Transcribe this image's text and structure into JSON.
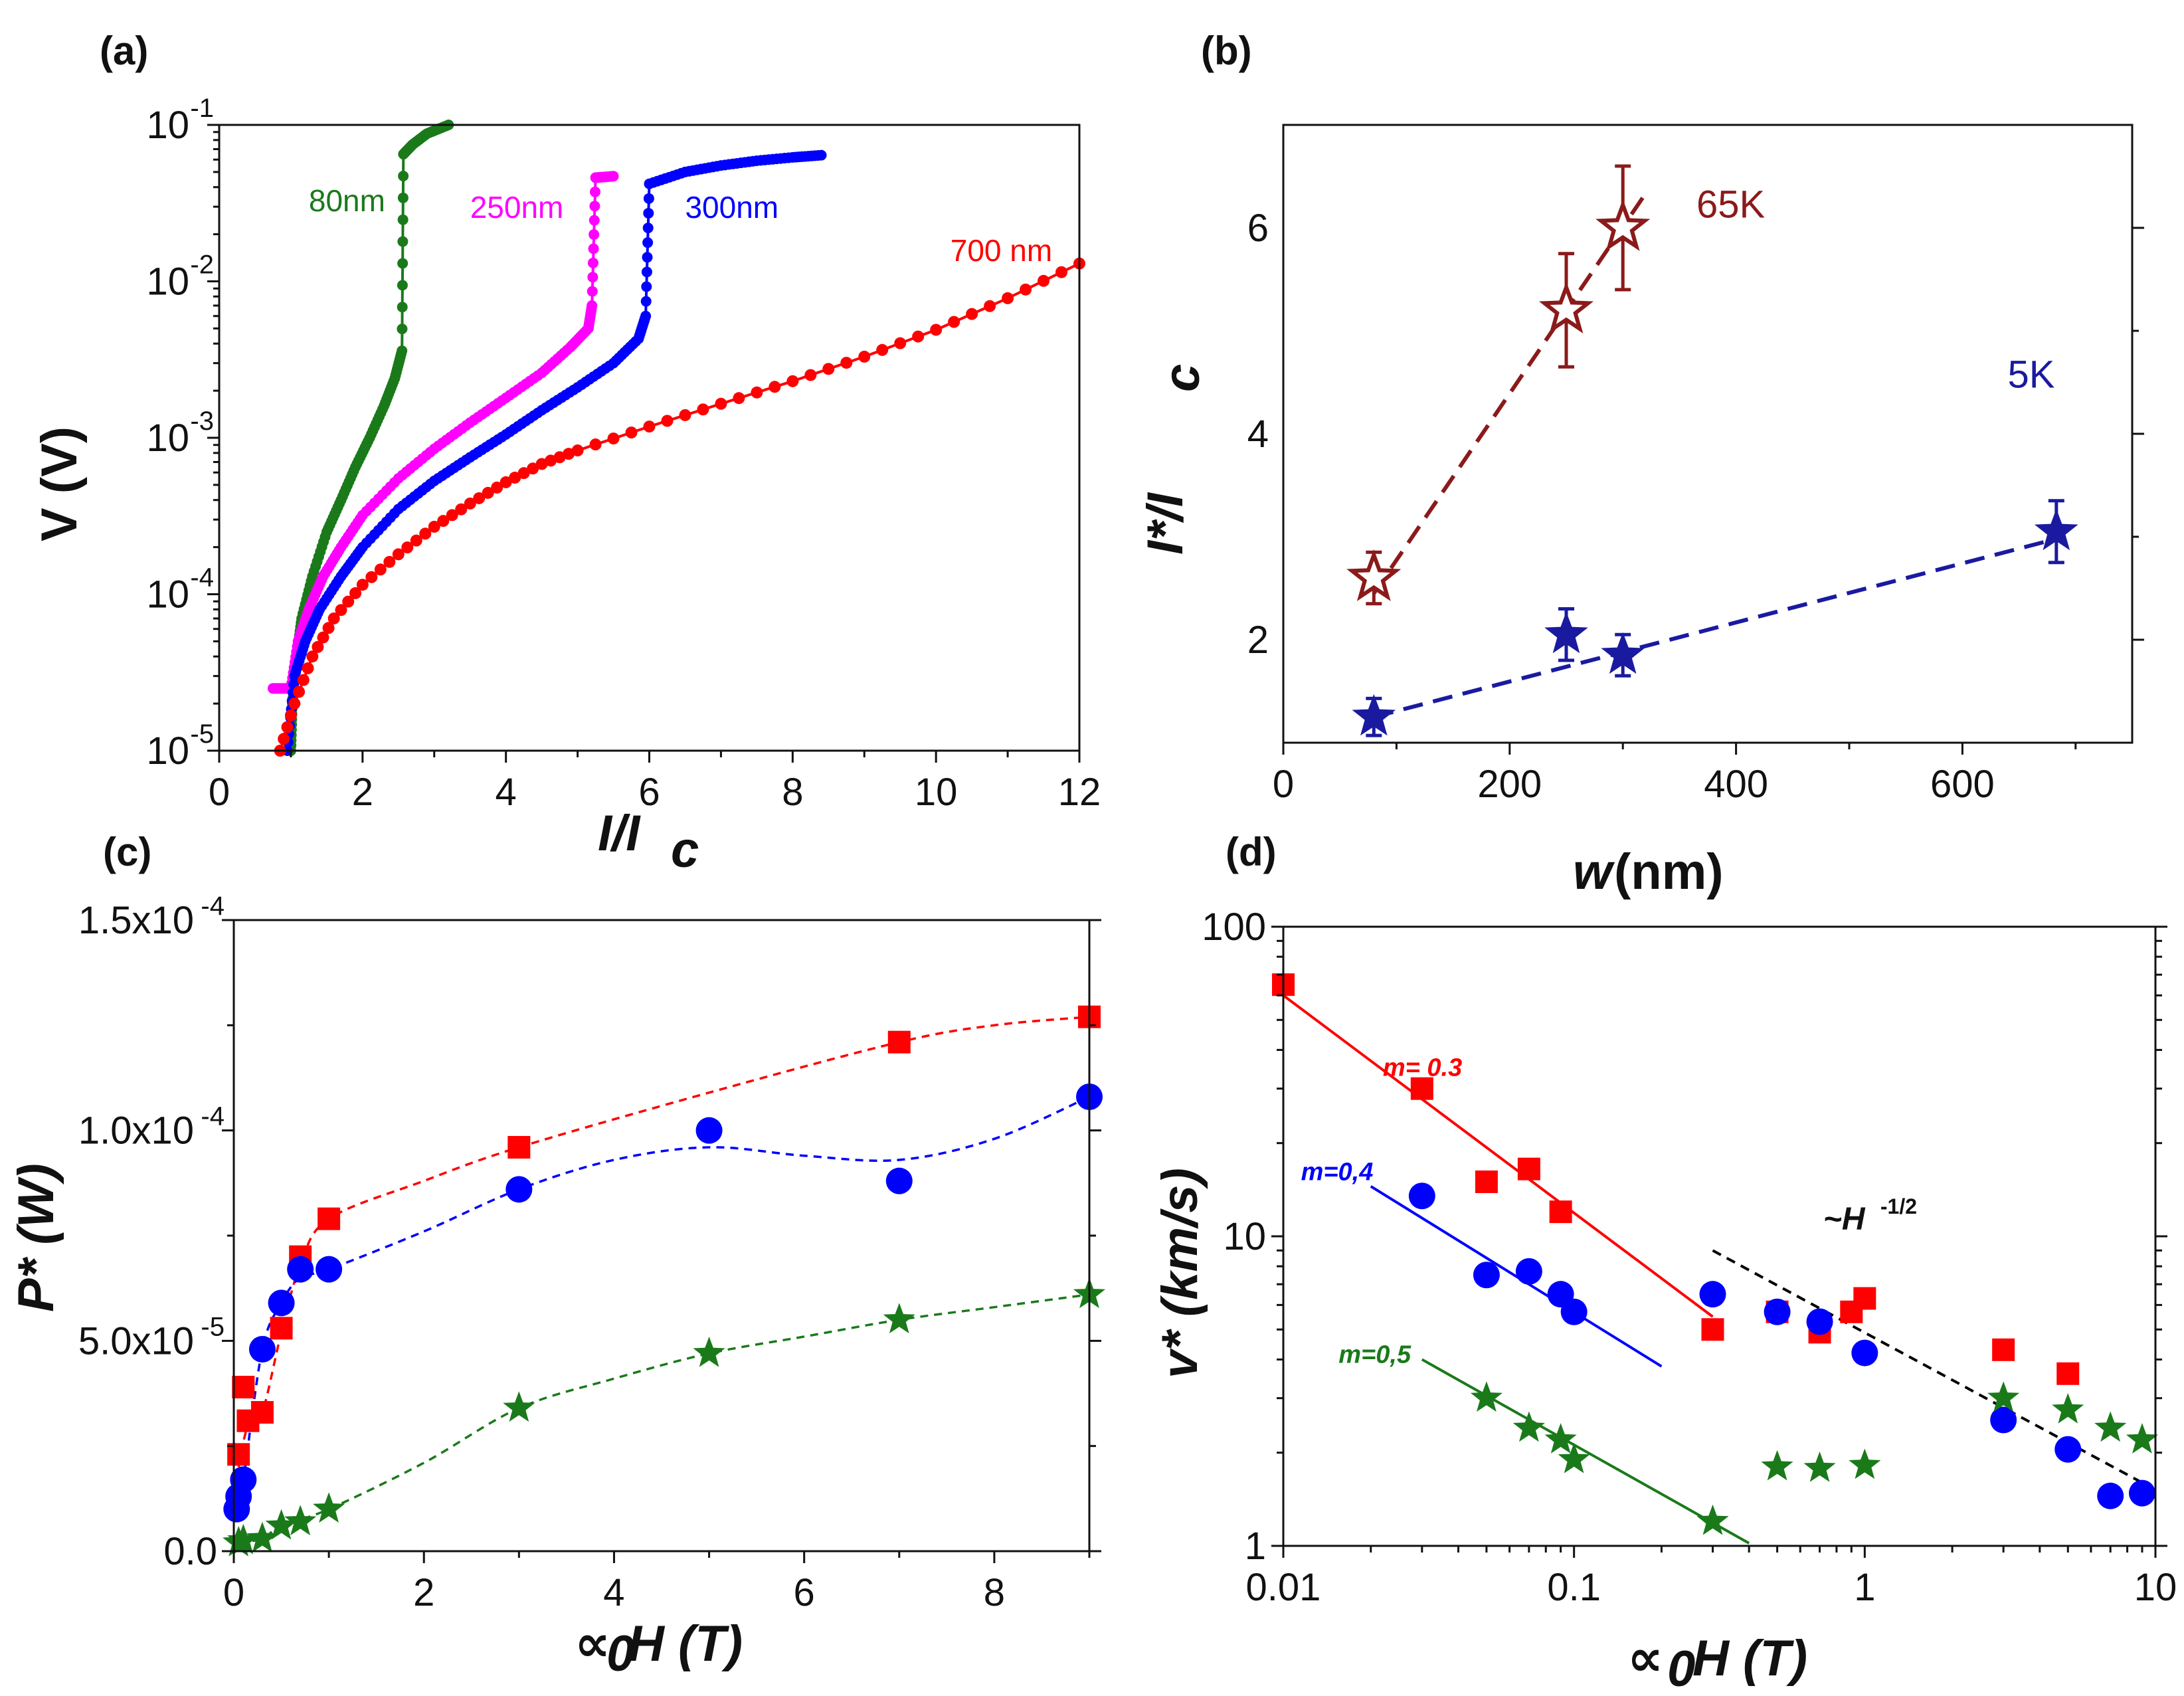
{
  "chart_data": [
    {
      "panel": "(a)",
      "type": "line",
      "log_y": true,
      "xlabel": "I/I",
      "xlabel_sub": "c",
      "ylabel": "V (V)",
      "xlim": [
        0,
        12
      ],
      "ylim": [
        1e-05,
        0.1
      ],
      "xticks": [
        "0",
        "2",
        "4",
        "6",
        "8",
        "10",
        "12"
      ],
      "yticks": [
        {
          "base": "10",
          "exp": "-5"
        },
        {
          "base": "10",
          "exp": "-4"
        },
        {
          "base": "10",
          "exp": "-3"
        },
        {
          "base": "10",
          "exp": "-2"
        },
        {
          "base": "10",
          "exp": "-1"
        }
      ],
      "series": [
        {
          "name": "80nm",
          "label_pos": [
            1.25,
            0.028
          ],
          "color": "#1a7a1a",
          "points": [
            [
              1.0,
              1e-05
            ],
            [
              1.02,
              2e-05
            ],
            [
              1.08,
              4e-05
            ],
            [
              1.15,
              7e-05
            ],
            [
              1.3,
              0.00013
            ],
            [
              1.5,
              0.00025
            ],
            [
              1.7,
              0.0004
            ],
            [
              1.9,
              0.00065
            ],
            [
              2.1,
              0.001
            ],
            [
              2.3,
              0.0016
            ],
            [
              2.45,
              0.0024
            ],
            [
              2.55,
              0.0036
            ],
            [
              2.57,
              0.065
            ],
            [
              2.7,
              0.075
            ],
            [
              2.9,
              0.088
            ],
            [
              3.2,
              0.1
            ]
          ]
        },
        {
          "name": "250nm",
          "label_pos": [
            3.5,
            0.0255
          ],
          "color": "#ff00ff",
          "points": [
            [
              0.75,
              2.5e-05
            ],
            [
              1.0,
              2.5e-05
            ],
            [
              1.1,
              5e-05
            ],
            [
              1.25,
              8e-05
            ],
            [
              1.45,
              0.00013
            ],
            [
              1.7,
              0.0002
            ],
            [
              2.0,
              0.00032
            ],
            [
              2.5,
              0.00055
            ],
            [
              3.0,
              0.00085
            ],
            [
              3.5,
              0.00125
            ],
            [
              4.0,
              0.0018
            ],
            [
              4.5,
              0.0026
            ],
            [
              4.9,
              0.0038
            ],
            [
              5.15,
              0.005
            ],
            [
              5.2,
              0.007
            ],
            [
              5.25,
              0.046
            ],
            [
              5.5,
              0.047
            ]
          ]
        },
        {
          "name": "300nm",
          "label_pos": [
            6.5,
            0.0255
          ],
          "color": "#0000ff",
          "points": [
            [
              0.95,
              1e-05
            ],
            [
              1.05,
              3e-05
            ],
            [
              1.2,
              5e-05
            ],
            [
              1.4,
              8e-05
            ],
            [
              1.7,
              0.00013
            ],
            [
              2.0,
              0.0002
            ],
            [
              2.5,
              0.00035
            ],
            [
              3.0,
              0.00053
            ],
            [
              3.5,
              0.00075
            ],
            [
              4.0,
              0.00105
            ],
            [
              4.5,
              0.0015
            ],
            [
              5.0,
              0.0021
            ],
            [
              5.5,
              0.003
            ],
            [
              5.85,
              0.0043
            ],
            [
              5.95,
              0.006
            ],
            [
              6.0,
              0.042
            ],
            [
              6.5,
              0.05
            ],
            [
              7.0,
              0.055
            ],
            [
              7.5,
              0.059
            ],
            [
              8.0,
              0.062
            ],
            [
              8.4,
              0.064
            ]
          ]
        },
        {
          "name": "700 nm",
          "label_pos": [
            10.2,
            0.0135
          ],
          "color": "#ff0000",
          "points": [
            [
              0.85,
              1e-05
            ],
            [
              1.05,
              2e-05
            ],
            [
              1.3,
              4e-05
            ],
            [
              1.6,
              7e-05
            ],
            [
              2.0,
              0.000115
            ],
            [
              2.5,
              0.00018
            ],
            [
              3.0,
              0.00027
            ],
            [
              3.5,
              0.00038
            ],
            [
              4.0,
              0.00052
            ],
            [
              4.5,
              0.00068
            ],
            [
              5.0,
              0.00083
            ],
            [
              6.0,
              0.00118
            ],
            [
              7.0,
              0.00165
            ],
            [
              8.0,
              0.0023
            ],
            [
              9.0,
              0.0033
            ],
            [
              10.0,
              0.0049
            ],
            [
              11.0,
              0.0078
            ],
            [
              12.0,
              0.013
            ]
          ]
        }
      ]
    },
    {
      "panel": "(b)",
      "type": "scatter",
      "xlabel": "w",
      "xlabel_unit": " (nm)",
      "ylabel": "I*/I",
      "ylabel_sub": "c",
      "xlim": [
        0,
        750
      ],
      "ylim": [
        1,
        7
      ],
      "xticks": [
        "0",
        "200",
        "400",
        "600"
      ],
      "yticks": [
        "2",
        "4",
        "6"
      ],
      "series": [
        {
          "name": "65K",
          "label_pos": [
            365,
            6.1
          ],
          "color": "#8b1a1a",
          "marker": "open-star",
          "points": [
            [
              80,
              2.6,
              0.25
            ],
            [
              250,
              5.2,
              0.55
            ],
            [
              300,
              6.0,
              0.6
            ]
          ]
        },
        {
          "name": "5K",
          "label_pos": [
            640,
            4.45
          ],
          "color": "#1a1aa0",
          "marker": "filled-star",
          "points": [
            [
              80,
              1.25,
              0.18
            ],
            [
              250,
              2.05,
              0.25
            ],
            [
              300,
              1.85,
              0.2
            ],
            [
              683,
              3.05,
              0.3
            ]
          ]
        }
      ]
    },
    {
      "panel": "(c)",
      "type": "scatter",
      "xlabel": "∝",
      "xlabel_sub": "0",
      "xlabel_rest": "H (T)",
      "ylabel": "P* (W)",
      "xlim": [
        0,
        9
      ],
      "ylim": [
        0,
        0.00015
      ],
      "xticks": [
        "0",
        "2",
        "4",
        "6",
        "8"
      ],
      "yticks": [
        {
          "v": 0,
          "text": "0.0",
          "exp": ""
        },
        {
          "v": 5e-05,
          "text": "5.0x10",
          "exp": "-5"
        },
        {
          "v": 0.0001,
          "text": "1.0x10",
          "exp": "-4"
        },
        {
          "v": 0.00015,
          "text": "1.5x10",
          "exp": "-4"
        }
      ],
      "series": [
        {
          "name": "red-squares",
          "color": "#ff0000",
          "marker": "square",
          "points": [
            [
              0.05,
              2.3e-05
            ],
            [
              0.1,
              3.9e-05
            ],
            [
              0.15,
              3.1e-05
            ],
            [
              0.3,
              3.3e-05
            ],
            [
              0.5,
              5.3e-05
            ],
            [
              0.7,
              7e-05
            ],
            [
              1.0,
              7.9e-05
            ],
            [
              3.0,
              9.6e-05
            ],
            [
              7.0,
              0.000121
            ],
            [
              9.0,
              0.000127
            ]
          ]
        },
        {
          "name": "blue-circles",
          "color": "#0000ff",
          "marker": "circle",
          "points": [
            [
              0.03,
              1e-05
            ],
            [
              0.05,
              1.3e-05
            ],
            [
              0.1,
              1.7e-05
            ],
            [
              0.3,
              4.8e-05
            ],
            [
              0.5,
              5.9e-05
            ],
            [
              0.7,
              6.7e-05
            ],
            [
              1.0,
              6.7e-05
            ],
            [
              3.0,
              8.6e-05
            ],
            [
              5.0,
              0.0001
            ],
            [
              7.0,
              8.8e-05
            ],
            [
              9.0,
              0.000108
            ]
          ]
        },
        {
          "name": "green-stars",
          "color": "#1a7a1a",
          "marker": "filled-star",
          "points": [
            [
              0.05,
              2e-06
            ],
            [
              0.1,
              2.5e-06
            ],
            [
              0.3,
              3e-06
            ],
            [
              0.5,
              6e-06
            ],
            [
              0.7,
              7e-06
            ],
            [
              1.0,
              1e-05
            ],
            [
              3.0,
              3.4e-05
            ],
            [
              5.0,
              4.7e-05
            ],
            [
              7.0,
              5.5e-05
            ],
            [
              9.0,
              6.1e-05
            ]
          ]
        }
      ],
      "fit_curves": [
        {
          "color": "#ff0000",
          "points": [
            [
              0.05,
              2e-05
            ],
            [
              0.15,
              3e-05
            ],
            [
              0.3,
              3.3e-05
            ],
            [
              0.5,
              5.2e-05
            ],
            [
              0.7,
              6.8e-05
            ],
            [
              1.0,
              7.9e-05
            ],
            [
              2.0,
              8.8e-05
            ],
            [
              3.0,
              9.6e-05
            ],
            [
              5.0,
              0.000109
            ],
            [
              7.0,
              0.000121
            ],
            [
              8.0,
              0.000125
            ],
            [
              9.0,
              0.000127
            ]
          ]
        },
        {
          "color": "#0000ff",
          "points": [
            [
              0.03,
              1e-05
            ],
            [
              0.1,
              1.7e-05
            ],
            [
              0.3,
              4.8e-05
            ],
            [
              0.5,
              5.9e-05
            ],
            [
              0.7,
              6.5e-05
            ],
            [
              1.0,
              6.7e-05
            ],
            [
              2.0,
              7.6e-05
            ],
            [
              3.0,
              8.6e-05
            ],
            [
              4.0,
              9.3e-05
            ],
            [
              5.0,
              9.6e-05
            ],
            [
              6.0,
              9.4e-05
            ],
            [
              7.0,
              9.3e-05
            ],
            [
              8.0,
              9.8e-05
            ],
            [
              9.0,
              0.000108
            ]
          ]
        },
        {
          "color": "#1a7a1a",
          "points": [
            [
              0.05,
              2e-06
            ],
            [
              0.3,
              3e-06
            ],
            [
              0.5,
              6e-06
            ],
            [
              1.0,
              1e-05
            ],
            [
              2.0,
              2.1e-05
            ],
            [
              3.0,
              3.4e-05
            ],
            [
              4.0,
              4.1e-05
            ],
            [
              5.0,
              4.7e-05
            ],
            [
              6.0,
              5.1e-05
            ],
            [
              7.0,
              5.5e-05
            ],
            [
              8.0,
              5.8e-05
            ],
            [
              9.0,
              6.1e-05
            ]
          ]
        }
      ]
    },
    {
      "panel": "(d)",
      "type": "scatter",
      "log_x": true,
      "log_y": true,
      "xlabel": "∝",
      "xlabel_sub": "0",
      "xlabel_rest": "H (T)",
      "ylabel": "v* (km/s)",
      "xlim": [
        0.01,
        10
      ],
      "ylim": [
        1,
        100
      ],
      "xticks": [
        "0.01",
        "0.1",
        "1",
        "10"
      ],
      "yticks": [
        "1",
        "10",
        "100"
      ],
      "series": [
        {
          "name": "red-squares",
          "color": "#ff0000",
          "marker": "square",
          "points": [
            [
              0.01,
              65
            ],
            [
              0.03,
              30
            ],
            [
              0.05,
              15
            ],
            [
              0.07,
              16.5
            ],
            [
              0.09,
              12
            ],
            [
              0.3,
              5.0
            ],
            [
              0.5,
              5.7
            ],
            [
              0.7,
              4.9
            ],
            [
              0.9,
              5.7
            ],
            [
              1.0,
              6.3
            ],
            [
              3.0,
              4.3
            ],
            [
              5.0,
              3.6
            ]
          ]
        },
        {
          "name": "blue-circles",
          "color": "#0000ff",
          "marker": "circle",
          "points": [
            [
              0.03,
              13.5
            ],
            [
              0.05,
              7.5
            ],
            [
              0.07,
              7.7
            ],
            [
              0.09,
              6.5
            ],
            [
              0.1,
              5.7
            ],
            [
              0.3,
              6.5
            ],
            [
              0.5,
              5.7
            ],
            [
              0.7,
              5.3
            ],
            [
              1.0,
              4.2
            ],
            [
              3.0,
              2.55
            ],
            [
              5.0,
              2.05
            ],
            [
              7.0,
              1.45
            ],
            [
              9.0,
              1.48
            ]
          ]
        },
        {
          "name": "green-stars",
          "color": "#1a7a1a",
          "marker": "filled-star",
          "points": [
            [
              0.05,
              3.0
            ],
            [
              0.07,
              2.4
            ],
            [
              0.09,
              2.2
            ],
            [
              0.1,
              1.9
            ],
            [
              0.3,
              1.2
            ],
            [
              0.5,
              1.8
            ],
            [
              0.7,
              1.78
            ],
            [
              1.0,
              1.82
            ],
            [
              3.0,
              3.0
            ],
            [
              5.0,
              2.75
            ],
            [
              7.0,
              2.4
            ],
            [
              9.0,
              2.2
            ]
          ]
        }
      ],
      "fit_lines": [
        {
          "label": "m= 0.3",
          "label_pos": [
            0.022,
            33
          ],
          "color": "#ff0000",
          "x": [
            0.01,
            0.3
          ],
          "y": [
            60,
            5.5
          ]
        },
        {
          "label": "m=0,4",
          "label_pos": [
            0.0115,
            15.2
          ],
          "color": "#0000ff",
          "x": [
            0.02,
            0.2
          ],
          "y": [
            14.5,
            3.8
          ]
        },
        {
          "label": "m=0,5",
          "label_pos": [
            0.0155,
            3.9
          ],
          "color": "#1a7a1a",
          "x": [
            0.03,
            0.4
          ],
          "y": [
            4.0,
            1.02
          ]
        }
      ],
      "guide": {
        "label": "~H",
        "label_exp": "-1/2",
        "label_pos": [
          0.72,
          10.5
        ],
        "color": "#000000",
        "x": [
          0.3,
          9.0
        ],
        "y": [
          9.0,
          1.6
        ]
      }
    }
  ]
}
